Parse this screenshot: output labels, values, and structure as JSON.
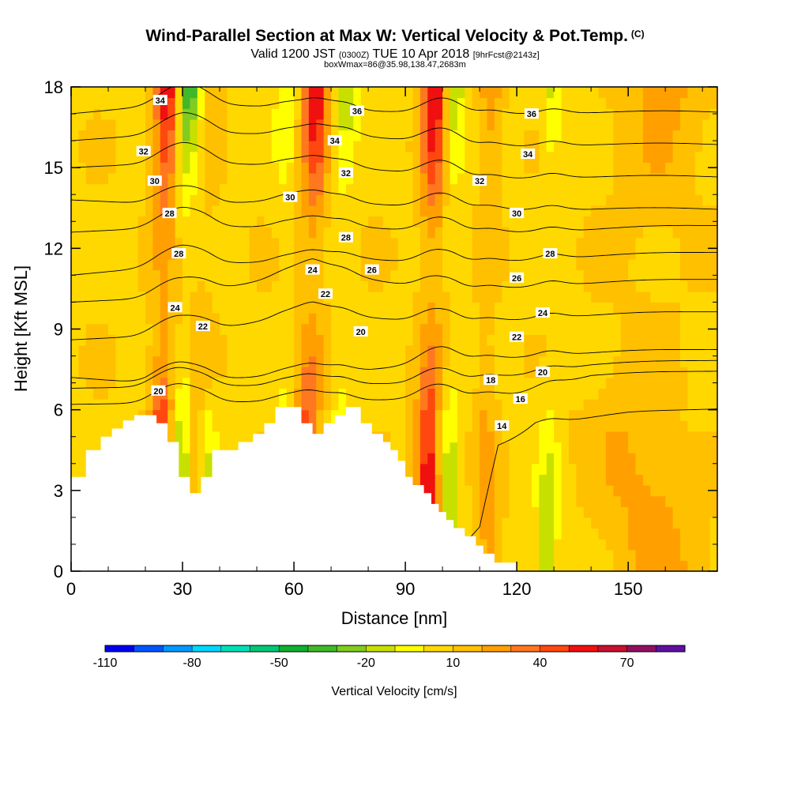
{
  "header": {
    "title": "Wind-Parallel Section at Max W: Vertical Velocity & Pot.Temp.",
    "copyright": "(C)",
    "valid_a": "Valid 1200 JST",
    "valid_utc": "(0300Z)",
    "valid_b": "TUE 10 Apr 2018",
    "fcst": "[9hrFcst@2143z]",
    "boxinfo": "boxWmax=86@35.98,138.47,2683m"
  },
  "chart_data": {
    "type": "heatmap",
    "xlabel": "Distance [nm]",
    "ylabel": "Height [Kft MSL]",
    "xlim": [
      0,
      174
    ],
    "ylim": [
      0,
      18
    ],
    "x_ticks": [
      0,
      30,
      60,
      90,
      120,
      150
    ],
    "x_tick_labels": [
      "0",
      "30",
      "60",
      "90",
      "120",
      "150"
    ],
    "y_ticks": [
      0,
      3,
      6,
      9,
      12,
      15,
      18
    ],
    "y_tick_labels": [
      "0",
      "3",
      "6",
      "9",
      "12",
      "15",
      "18"
    ],
    "colorbar": {
      "label": "Vertical Velocity [cm/s]",
      "tick_labels": [
        "-110",
        "-80",
        "-50",
        "-20",
        "10",
        "40",
        "70"
      ],
      "tick_values": [
        -110,
        -80,
        -50,
        -20,
        10,
        40,
        70
      ],
      "range": [
        -110,
        90
      ],
      "colors": [
        "#0000f0",
        "#0055ff",
        "#0099ff",
        "#00d8ff",
        "#00e0b8",
        "#00c878",
        "#10b030",
        "#40b828",
        "#80cc20",
        "#c8e000",
        "#ffff00",
        "#ffd800",
        "#ffc000",
        "#ffa000",
        "#ff7820",
        "#ff4810",
        "#f01010",
        "#c81030",
        "#901060",
        "#6010a0"
      ]
    },
    "terrain": [
      [
        0,
        3.5
      ],
      [
        4,
        3.5
      ],
      [
        4,
        4.5
      ],
      [
        8,
        4.5
      ],
      [
        8,
        5
      ],
      [
        11,
        5
      ],
      [
        11,
        5.3
      ],
      [
        14,
        5.3
      ],
      [
        14,
        5.6
      ],
      [
        17,
        5.6
      ],
      [
        17,
        5.8
      ],
      [
        23,
        5.8
      ],
      [
        23,
        5.5
      ],
      [
        26,
        5.5
      ],
      [
        26,
        4.8
      ],
      [
        29,
        4.8
      ],
      [
        29,
        3.5
      ],
      [
        32,
        3.5
      ],
      [
        32,
        2.9
      ],
      [
        35,
        2.9
      ],
      [
        35,
        3.5
      ],
      [
        38,
        3.5
      ],
      [
        38,
        4.5
      ],
      [
        45,
        4.5
      ],
      [
        45,
        4.8
      ],
      [
        49,
        4.8
      ],
      [
        49,
        5.1
      ],
      [
        52,
        5.1
      ],
      [
        52,
        5.5
      ],
      [
        55,
        5.5
      ],
      [
        55,
        6.1
      ],
      [
        62,
        6.1
      ],
      [
        62,
        5.5
      ],
      [
        65,
        5.5
      ],
      [
        65,
        5.1
      ],
      [
        68,
        5.1
      ],
      [
        68,
        5.5
      ],
      [
        71,
        5.5
      ],
      [
        71,
        5.8
      ],
      [
        74,
        5.8
      ],
      [
        74,
        6.1
      ],
      [
        78,
        6.1
      ],
      [
        78,
        5.5
      ],
      [
        81,
        5.5
      ],
      [
        81,
        5.1
      ],
      [
        84,
        5.1
      ],
      [
        84,
        4.8
      ],
      [
        86,
        4.8
      ],
      [
        86,
        4.5
      ],
      [
        88,
        4.5
      ],
      [
        88,
        4.1
      ],
      [
        90,
        4.1
      ],
      [
        90,
        3.5
      ],
      [
        92,
        3.5
      ],
      [
        92,
        3.2
      ],
      [
        95,
        3.2
      ],
      [
        95,
        2.9
      ],
      [
        97,
        2.9
      ],
      [
        97,
        2.5
      ],
      [
        99,
        2.5
      ],
      [
        99,
        2.2
      ],
      [
        101,
        2.2
      ],
      [
        101,
        1.9
      ],
      [
        103,
        1.9
      ],
      [
        103,
        1.6
      ],
      [
        106,
        1.6
      ],
      [
        106,
        1.3
      ],
      [
        109,
        1.3
      ],
      [
        109,
        0.95
      ],
      [
        111,
        0.95
      ],
      [
        111,
        0.65
      ],
      [
        114,
        0.65
      ],
      [
        114,
        0.32
      ],
      [
        120,
        0.32
      ],
      [
        120,
        0
      ]
    ],
    "updrafts": [
      {
        "x0": 24,
        "x1": 26,
        "xb": 26,
        "w": 3.5,
        "intensity": 60
      },
      {
        "x0": 33,
        "x1": 37,
        "xb": 34,
        "w": 3,
        "intensity": 25
      },
      {
        "x0": 63,
        "x1": 66,
        "xb": 63,
        "w": 3.5,
        "intensity": 55
      },
      {
        "x0": 96,
        "x1": 98,
        "xb": 97,
        "w": 3.5,
        "intensity": 60
      },
      {
        "x0": 111,
        "x1": 113,
        "xb": 113,
        "w": 3,
        "intensity": 20
      },
      {
        "x0": 148,
        "x1": 160,
        "xb": 160,
        "w": 12,
        "intensity": 16
      }
    ],
    "downdrafts": [
      {
        "x0": 29,
        "x1": 31,
        "xb": 29,
        "w": 3,
        "intensity": 60
      },
      {
        "x0": 37,
        "x1": 35,
        "xb": 35,
        "w": 3,
        "intensity": 30
      },
      {
        "x0": 56,
        "x1": 58,
        "xb": 56,
        "w": 3,
        "intensity": 25
      },
      {
        "x0": 72,
        "x1": 74,
        "xb": 73,
        "w": 3,
        "intensity": 35
      },
      {
        "x0": 101,
        "x1": 103,
        "xb": 103,
        "w": 3,
        "intensity": 40
      },
      {
        "x0": 128,
        "x1": 130,
        "xb": 130,
        "w": 3,
        "intensity": 25
      }
    ],
    "contours": [
      {
        "label": "14",
        "levels": [
          [
            0,
            0
          ],
          [
            100,
            0
          ],
          [
            110,
            1.5
          ],
          [
            115,
            4.6
          ],
          [
            125,
            5.4
          ],
          [
            150,
            5.8
          ],
          [
            174,
            6.0
          ]
        ],
        "label_x": 117
      },
      {
        "label": "16",
        "levels": [
          [
            0,
            6.2
          ],
          [
            100,
            6.4
          ],
          [
            120,
            6.6
          ],
          [
            140,
            7.2
          ],
          [
            174,
            7.4
          ]
        ],
        "label_x": 122
      },
      {
        "label": "18",
        "levels": [
          [
            0,
            6.8
          ],
          [
            100,
            7.0
          ],
          [
            115,
            7.2
          ],
          [
            140,
            7.6
          ],
          [
            174,
            7.8
          ]
        ],
        "label_x": 113
      },
      {
        "label": "20",
        "levels": [
          [
            0,
            7.2
          ],
          [
            20,
            7.0
          ],
          [
            75,
            7.4
          ],
          [
            100,
            7.8
          ],
          [
            130,
            8.0
          ],
          [
            174,
            8.2
          ]
        ],
        "label_x": 127
      },
      {
        "label": "22",
        "levels": [
          [
            0,
            8.6
          ],
          [
            30,
            8.8
          ],
          [
            65,
            9.6
          ],
          [
            100,
            9.2
          ],
          [
            130,
            9.4
          ],
          [
            174,
            9.6
          ]
        ],
        "label_x": 120
      },
      {
        "label": "24",
        "levels": [
          [
            0,
            10.0
          ],
          [
            30,
            10.2
          ],
          [
            65,
            11.2
          ],
          [
            100,
            10.4
          ],
          [
            130,
            10.6
          ],
          [
            174,
            10.8
          ]
        ],
        "label_x": 127
      },
      {
        "label": "26",
        "levels": [
          [
            0,
            11.0
          ],
          [
            30,
            11.4
          ],
          [
            80,
            11.6
          ],
          [
            100,
            11.4
          ],
          [
            130,
            11.6
          ],
          [
            174,
            11.8
          ]
        ],
        "label_x": 120
      },
      {
        "label": "28",
        "levels": [
          [
            0,
            12.6
          ],
          [
            30,
            12.8
          ],
          [
            75,
            12.8
          ],
          [
            100,
            12.6
          ],
          [
            130,
            12.6
          ],
          [
            174,
            12.8
          ]
        ],
        "label_x": 129
      },
      {
        "label": "30",
        "levels": [
          [
            0,
            13.8
          ],
          [
            30,
            13.6
          ],
          [
            60,
            13.8
          ],
          [
            100,
            13.5
          ],
          [
            130,
            13.4
          ],
          [
            174,
            13.4
          ]
        ],
        "label_x": 120
      },
      {
        "label": "32",
        "levels": [
          [
            0,
            15.0
          ],
          [
            30,
            15.2
          ],
          [
            75,
            15.0
          ],
          [
            110,
            14.6
          ],
          [
            140,
            14.6
          ],
          [
            174,
            14.6
          ]
        ],
        "label_x": 103
      },
      {
        "label": "34",
        "levels": [
          [
            0,
            16.0
          ],
          [
            30,
            16.3
          ],
          [
            75,
            16.2
          ],
          [
            110,
            15.8
          ],
          [
            140,
            15.8
          ],
          [
            174,
            15.8
          ]
        ],
        "label_x": 123
      },
      {
        "label": "36",
        "levels": [
          [
            0,
            17.0
          ],
          [
            30,
            17.4
          ],
          [
            80,
            17.1
          ],
          [
            110,
            17.0
          ],
          [
            140,
            17.0
          ],
          [
            174,
            17.0
          ]
        ],
        "label_x": 123
      }
    ],
    "contour_labels": [
      {
        "text": "34",
        "x": 24,
        "y": 17.5
      },
      {
        "text": "32",
        "x": 19.5,
        "y": 15.6
      },
      {
        "text": "30",
        "x": 22.5,
        "y": 14.5
      },
      {
        "text": "28",
        "x": 26.5,
        "y": 13.3
      },
      {
        "text": "28",
        "x": 29,
        "y": 11.8
      },
      {
        "text": "24",
        "x": 28,
        "y": 9.8
      },
      {
        "text": "22",
        "x": 35.5,
        "y": 9.1
      },
      {
        "text": "20",
        "x": 23.5,
        "y": 6.7
      },
      {
        "text": "36",
        "x": 77,
        "y": 17.1
      },
      {
        "text": "34",
        "x": 71,
        "y": 16.0
      },
      {
        "text": "32",
        "x": 74,
        "y": 14.8
      },
      {
        "text": "30",
        "x": 59,
        "y": 13.9
      },
      {
        "text": "28",
        "x": 74,
        "y": 12.4
      },
      {
        "text": "24",
        "x": 65,
        "y": 11.2
      },
      {
        "text": "22",
        "x": 68.5,
        "y": 10.3
      },
      {
        "text": "26",
        "x": 81,
        "y": 11.2
      },
      {
        "text": "20",
        "x": 78,
        "y": 8.9
      },
      {
        "text": "36",
        "x": 124,
        "y": 17.0
      },
      {
        "text": "34",
        "x": 123,
        "y": 15.5
      },
      {
        "text": "32",
        "x": 110,
        "y": 14.5
      },
      {
        "text": "30",
        "x": 120,
        "y": 13.3
      },
      {
        "text": "28",
        "x": 129,
        "y": 11.8
      },
      {
        "text": "26",
        "x": 120,
        "y": 10.9
      },
      {
        "text": "24",
        "x": 127,
        "y": 9.6
      },
      {
        "text": "22",
        "x": 120,
        "y": 8.7
      },
      {
        "text": "20",
        "x": 127,
        "y": 7.4
      },
      {
        "text": "18",
        "x": 113,
        "y": 7.1
      },
      {
        "text": "16",
        "x": 121,
        "y": 6.4
      },
      {
        "text": "14",
        "x": 116,
        "y": 5.4
      }
    ]
  }
}
